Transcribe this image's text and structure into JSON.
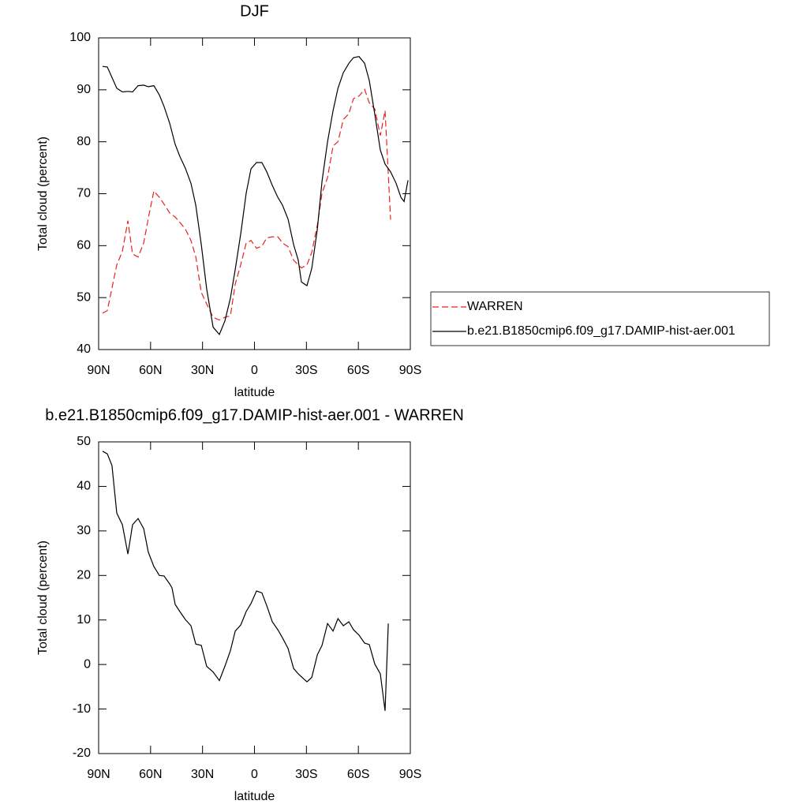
{
  "chart_data": [
    {
      "type": "line",
      "title": "DJF",
      "x_label": "latitude",
      "y_label": "Total cloud (percent)",
      "x": [
        87.7,
        85.0,
        79.5,
        76.3,
        73.1,
        70.4,
        67.2,
        64.0,
        61.3,
        58.1,
        54.9,
        52.2,
        49.0,
        45.8,
        43.1,
        39.9,
        36.7,
        33.9,
        30.7,
        27.6,
        23.9,
        20.3,
        17.1,
        13.9,
        11.1,
        7.9,
        4.8,
        2.0,
        -1.2,
        -4.3,
        -7.1,
        -10.3,
        -13.5,
        -16.2,
        -19.4,
        -22.6,
        -25.3,
        -27.1,
        -30.3,
        -33.1,
        -36.3,
        -39.0,
        -42.2,
        -45.4,
        -48.2,
        -51.3,
        -54.5,
        -57.2,
        -60.4,
        -63.6,
        -66.3,
        -69.5,
        -72.7,
        -75.4,
        -78.6,
        -81.8,
        -84.6,
        -86.4,
        -88.7
      ],
      "series": [
        {
          "name": "WARREN",
          "color": "#e8231d",
          "line_style": "dashed",
          "values": [
            47,
            47.5,
            56.3,
            58.9,
            64.8,
            58.4,
            57.8,
            60.5,
            65.3,
            70.5,
            69.3,
            68,
            66.3,
            65.5,
            64.5,
            63.2,
            61,
            57.9,
            51,
            48.8,
            46.2,
            45.7,
            46.2,
            46.5,
            52.6,
            56.4,
            60.5,
            61,
            59.5,
            59.9,
            61.5,
            61.7,
            61.7,
            60.5,
            59.8,
            57.2,
            56.3,
            55.7,
            56.3,
            58.7,
            64,
            70.1,
            73.1,
            79.2,
            80,
            84.3,
            85.4,
            88.3,
            88.8,
            90.1,
            87.5,
            86.3,
            81.2,
            86,
            65,
            null,
            null,
            null,
            null
          ]
        },
        {
          "name": "b.e21.B1850cmip6.f09_g17.DAMIP-hist-aer.001",
          "color": "#000000",
          "line_style": "solid",
          "values": [
            94.5,
            94.4,
            90.3,
            89.6,
            89.7,
            89.6,
            90.8,
            90.9,
            90.6,
            90.8,
            89,
            86.8,
            83.6,
            79.5,
            77.2,
            74.9,
            72,
            67.8,
            60.2,
            51.7,
            44.3,
            42.9,
            45.5,
            49.9,
            55.4,
            62.4,
            70.1,
            74.8,
            76,
            76,
            74.2,
            71.6,
            69.3,
            67.8,
            65.1,
            60.2,
            57.2,
            53,
            52.3,
            55.6,
            63.2,
            72.4,
            80,
            86,
            90.3,
            93.3,
            95.1,
            96.2,
            96.4,
            95.1,
            91.8,
            85.3,
            78.4,
            75.7,
            74.2,
            72,
            69.3,
            68.5,
            72.6
          ]
        }
      ],
      "xlim": [
        90,
        -90
      ],
      "xticks": [
        {
          "value": 90,
          "label": "90N"
        },
        {
          "value": 60,
          "label": "60N"
        },
        {
          "value": 30,
          "label": "30N"
        },
        0,
        {
          "value": -30,
          "label": "30S"
        },
        {
          "value": -60,
          "label": "60S"
        },
        {
          "value": -90,
          "label": "90S"
        }
      ],
      "ylim": [
        40,
        100
      ],
      "yticks": [
        40,
        50,
        60,
        70,
        80,
        90,
        100
      ],
      "legend": "right"
    },
    {
      "type": "line",
      "title": "b.e21.B1850cmip6.f09_g17.DAMIP-hist-aer.001 - WARREN",
      "x_label": "latitude",
      "y_label": "Total cloud (percent)",
      "x": [
        87.7,
        85.0,
        82.3,
        79.5,
        76.3,
        73.1,
        70.4,
        67.2,
        64.0,
        61.3,
        58.1,
        54.9,
        52.2,
        49.0,
        47.6,
        45.8,
        43.1,
        39.9,
        36.7,
        33.9,
        30.7,
        27.6,
        23.9,
        20.3,
        17.1,
        13.9,
        11.1,
        7.9,
        4.8,
        2.0,
        -1.2,
        -4.3,
        -7.1,
        -10.3,
        -13.5,
        -16.2,
        -19.4,
        -22.6,
        -25.3,
        -30.3,
        -33.1,
        -36.3,
        -39.0,
        -42.2,
        -45.4,
        -48.2,
        -51.3,
        -54.5,
        -57.2,
        -60.4,
        -63.6,
        -66.3,
        -69.5,
        -72.7,
        -75.4,
        -77.3
      ],
      "values": [
        47.9,
        47.3,
        44.7,
        34,
        31.4,
        24.8,
        31.4,
        32.8,
        30.5,
        25.2,
        22,
        20,
        19.9,
        18.1,
        17.2,
        13.5,
        11.9,
        10.1,
        8.7,
        4.6,
        4.3,
        -0.4,
        -1.7,
        -3.6,
        -0.4,
        3.1,
        7.5,
        8.9,
        11.9,
        13.7,
        16.5,
        16.1,
        13.2,
        9.6,
        7.8,
        6,
        3.6,
        -0.9,
        -2.1,
        -3.9,
        -2.9,
        2.2,
        4.3,
        9.2,
        7.5,
        10.3,
        8.7,
        9.6,
        7.8,
        6.6,
        4.8,
        4.5,
        0.1,
        -2.1,
        -10.4,
        9.2
      ],
      "color": "#000000",
      "xlim": [
        90,
        -90
      ],
      "xticks": [
        {
          "value": 90,
          "label": "90N"
        },
        {
          "value": 60,
          "label": "60N"
        },
        {
          "value": 30,
          "label": "30N"
        },
        0,
        {
          "value": -30,
          "label": "30S"
        },
        {
          "value": -60,
          "label": "60S"
        },
        {
          "value": -90,
          "label": "90S"
        }
      ],
      "ylim": [
        -20,
        50
      ],
      "yticks": [
        -20,
        -10,
        0,
        10,
        20,
        30,
        40,
        50
      ]
    }
  ]
}
